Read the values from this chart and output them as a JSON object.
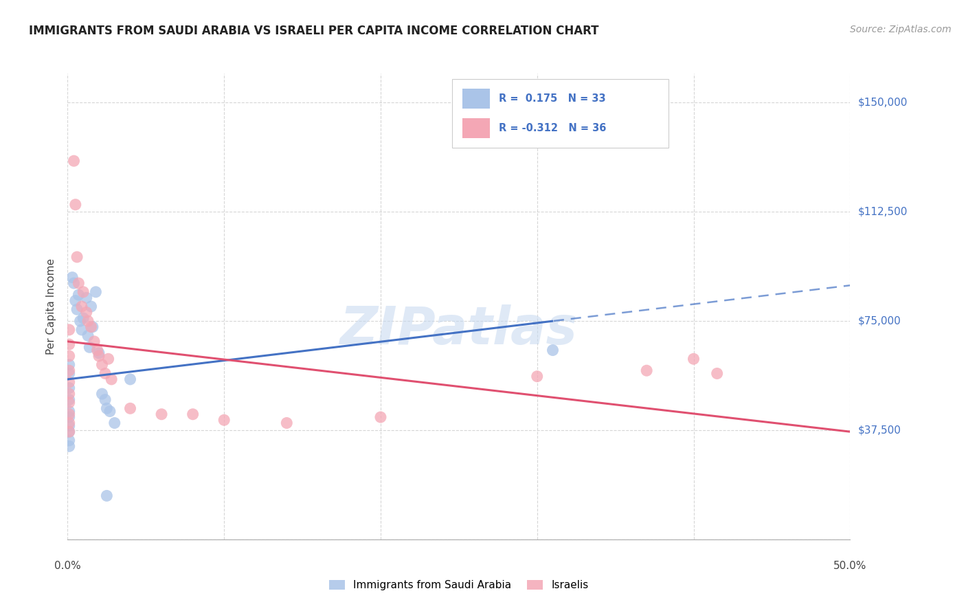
{
  "title": "IMMIGRANTS FROM SAUDI ARABIA VS ISRAELI PER CAPITA INCOME CORRELATION CHART",
  "source": "Source: ZipAtlas.com",
  "ylabel": "Per Capita Income",
  "yticks": [
    0,
    37500,
    75000,
    112500,
    150000
  ],
  "ytick_labels": [
    "",
    "$37,500",
    "$75,000",
    "$112,500",
    "$150,000"
  ],
  "xlim": [
    0,
    0.5
  ],
  "ylim": [
    0,
    160000
  ],
  "legend_blue_R": "R =  0.175",
  "legend_blue_N": "N = 33",
  "legend_pink_R": "R = -0.312",
  "legend_pink_N": "N = 36",
  "legend_label_blue": "Immigrants from Saudi Arabia",
  "legend_label_pink": "Israelis",
  "blue_color": "#aac4e8",
  "pink_color": "#f4a7b5",
  "blue_line_color": "#4472c4",
  "pink_line_color": "#e05070",
  "blue_scatter": [
    [
      0.001,
      57000
    ],
    [
      0.001,
      52000
    ],
    [
      0.001,
      48000
    ],
    [
      0.001,
      44000
    ],
    [
      0.001,
      42000
    ],
    [
      0.001,
      39000
    ],
    [
      0.001,
      37000
    ],
    [
      0.001,
      34000
    ],
    [
      0.001,
      32000
    ],
    [
      0.001,
      60000
    ],
    [
      0.003,
      90000
    ],
    [
      0.004,
      88000
    ],
    [
      0.005,
      82000
    ],
    [
      0.006,
      79000
    ],
    [
      0.007,
      84000
    ],
    [
      0.008,
      75000
    ],
    [
      0.009,
      72000
    ],
    [
      0.01,
      76000
    ],
    [
      0.012,
      83000
    ],
    [
      0.013,
      70000
    ],
    [
      0.014,
      66000
    ],
    [
      0.015,
      80000
    ],
    [
      0.016,
      73000
    ],
    [
      0.018,
      85000
    ],
    [
      0.02,
      64000
    ],
    [
      0.022,
      50000
    ],
    [
      0.024,
      48000
    ],
    [
      0.025,
      45000
    ],
    [
      0.027,
      44000
    ],
    [
      0.03,
      40000
    ],
    [
      0.04,
      55000
    ],
    [
      0.31,
      65000
    ],
    [
      0.025,
      15000
    ]
  ],
  "pink_scatter": [
    [
      0.001,
      72000
    ],
    [
      0.001,
      67000
    ],
    [
      0.001,
      63000
    ],
    [
      0.001,
      58000
    ],
    [
      0.001,
      54000
    ],
    [
      0.001,
      50000
    ],
    [
      0.001,
      47000
    ],
    [
      0.001,
      43000
    ],
    [
      0.001,
      40000
    ],
    [
      0.001,
      37000
    ],
    [
      0.004,
      130000
    ],
    [
      0.005,
      115000
    ],
    [
      0.006,
      97000
    ],
    [
      0.007,
      88000
    ],
    [
      0.009,
      80000
    ],
    [
      0.01,
      85000
    ],
    [
      0.012,
      78000
    ],
    [
      0.013,
      75000
    ],
    [
      0.015,
      73000
    ],
    [
      0.017,
      68000
    ],
    [
      0.019,
      65000
    ],
    [
      0.02,
      63000
    ],
    [
      0.022,
      60000
    ],
    [
      0.024,
      57000
    ],
    [
      0.026,
      62000
    ],
    [
      0.028,
      55000
    ],
    [
      0.04,
      45000
    ],
    [
      0.06,
      43000
    ],
    [
      0.08,
      43000
    ],
    [
      0.1,
      41000
    ],
    [
      0.14,
      40000
    ],
    [
      0.2,
      42000
    ],
    [
      0.37,
      58000
    ],
    [
      0.415,
      57000
    ],
    [
      0.4,
      62000
    ],
    [
      0.3,
      56000
    ]
  ],
  "watermark_text": "ZIPatlas",
  "background_color": "#ffffff",
  "grid_color": "#cccccc"
}
